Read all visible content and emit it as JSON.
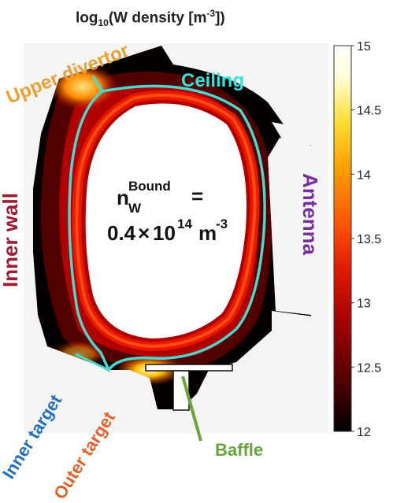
{
  "title": {
    "prefix": "log",
    "sub": "10",
    "mid": "(W density [m",
    "sup": "-3",
    "suffix": "])"
  },
  "colorbar": {
    "ticks": [
      "15",
      "14.5",
      "14",
      "13.5",
      "13",
      "12.5",
      "12"
    ],
    "min": 12,
    "max": 15,
    "colormap": [
      "#000000",
      "#4a0000",
      "#a10000",
      "#e01a00",
      "#ff5a00",
      "#ff9e00",
      "#ffdd30",
      "#ffffd8",
      "#ffffff"
    ]
  },
  "annotations": {
    "upper_divertor": "Upper divertor",
    "ceiling": "Ceiling",
    "inner_wall": "Inner wall",
    "antenna": "Antenna",
    "inner_target": "Inner target",
    "outer_target": "Outer target",
    "baffle": "Baffle"
  },
  "center_text": {
    "n": "n",
    "sub": "W",
    "sup": "Bound",
    "equals": "=",
    "value": "0.4",
    "times": "×",
    "base": "10",
    "exp": "14",
    "unit": "m",
    "unit_exp": "-3"
  },
  "colors": {
    "upper_divertor": "#e8a030",
    "ceiling": "#2ee6e0",
    "inner_wall": "#9e1b32",
    "antenna": "#7a2e9e",
    "inner_target": "#1f6fc4",
    "outer_target": "#e0622a",
    "baffle": "#6aa43a",
    "separatrix": "#48d8d0"
  }
}
